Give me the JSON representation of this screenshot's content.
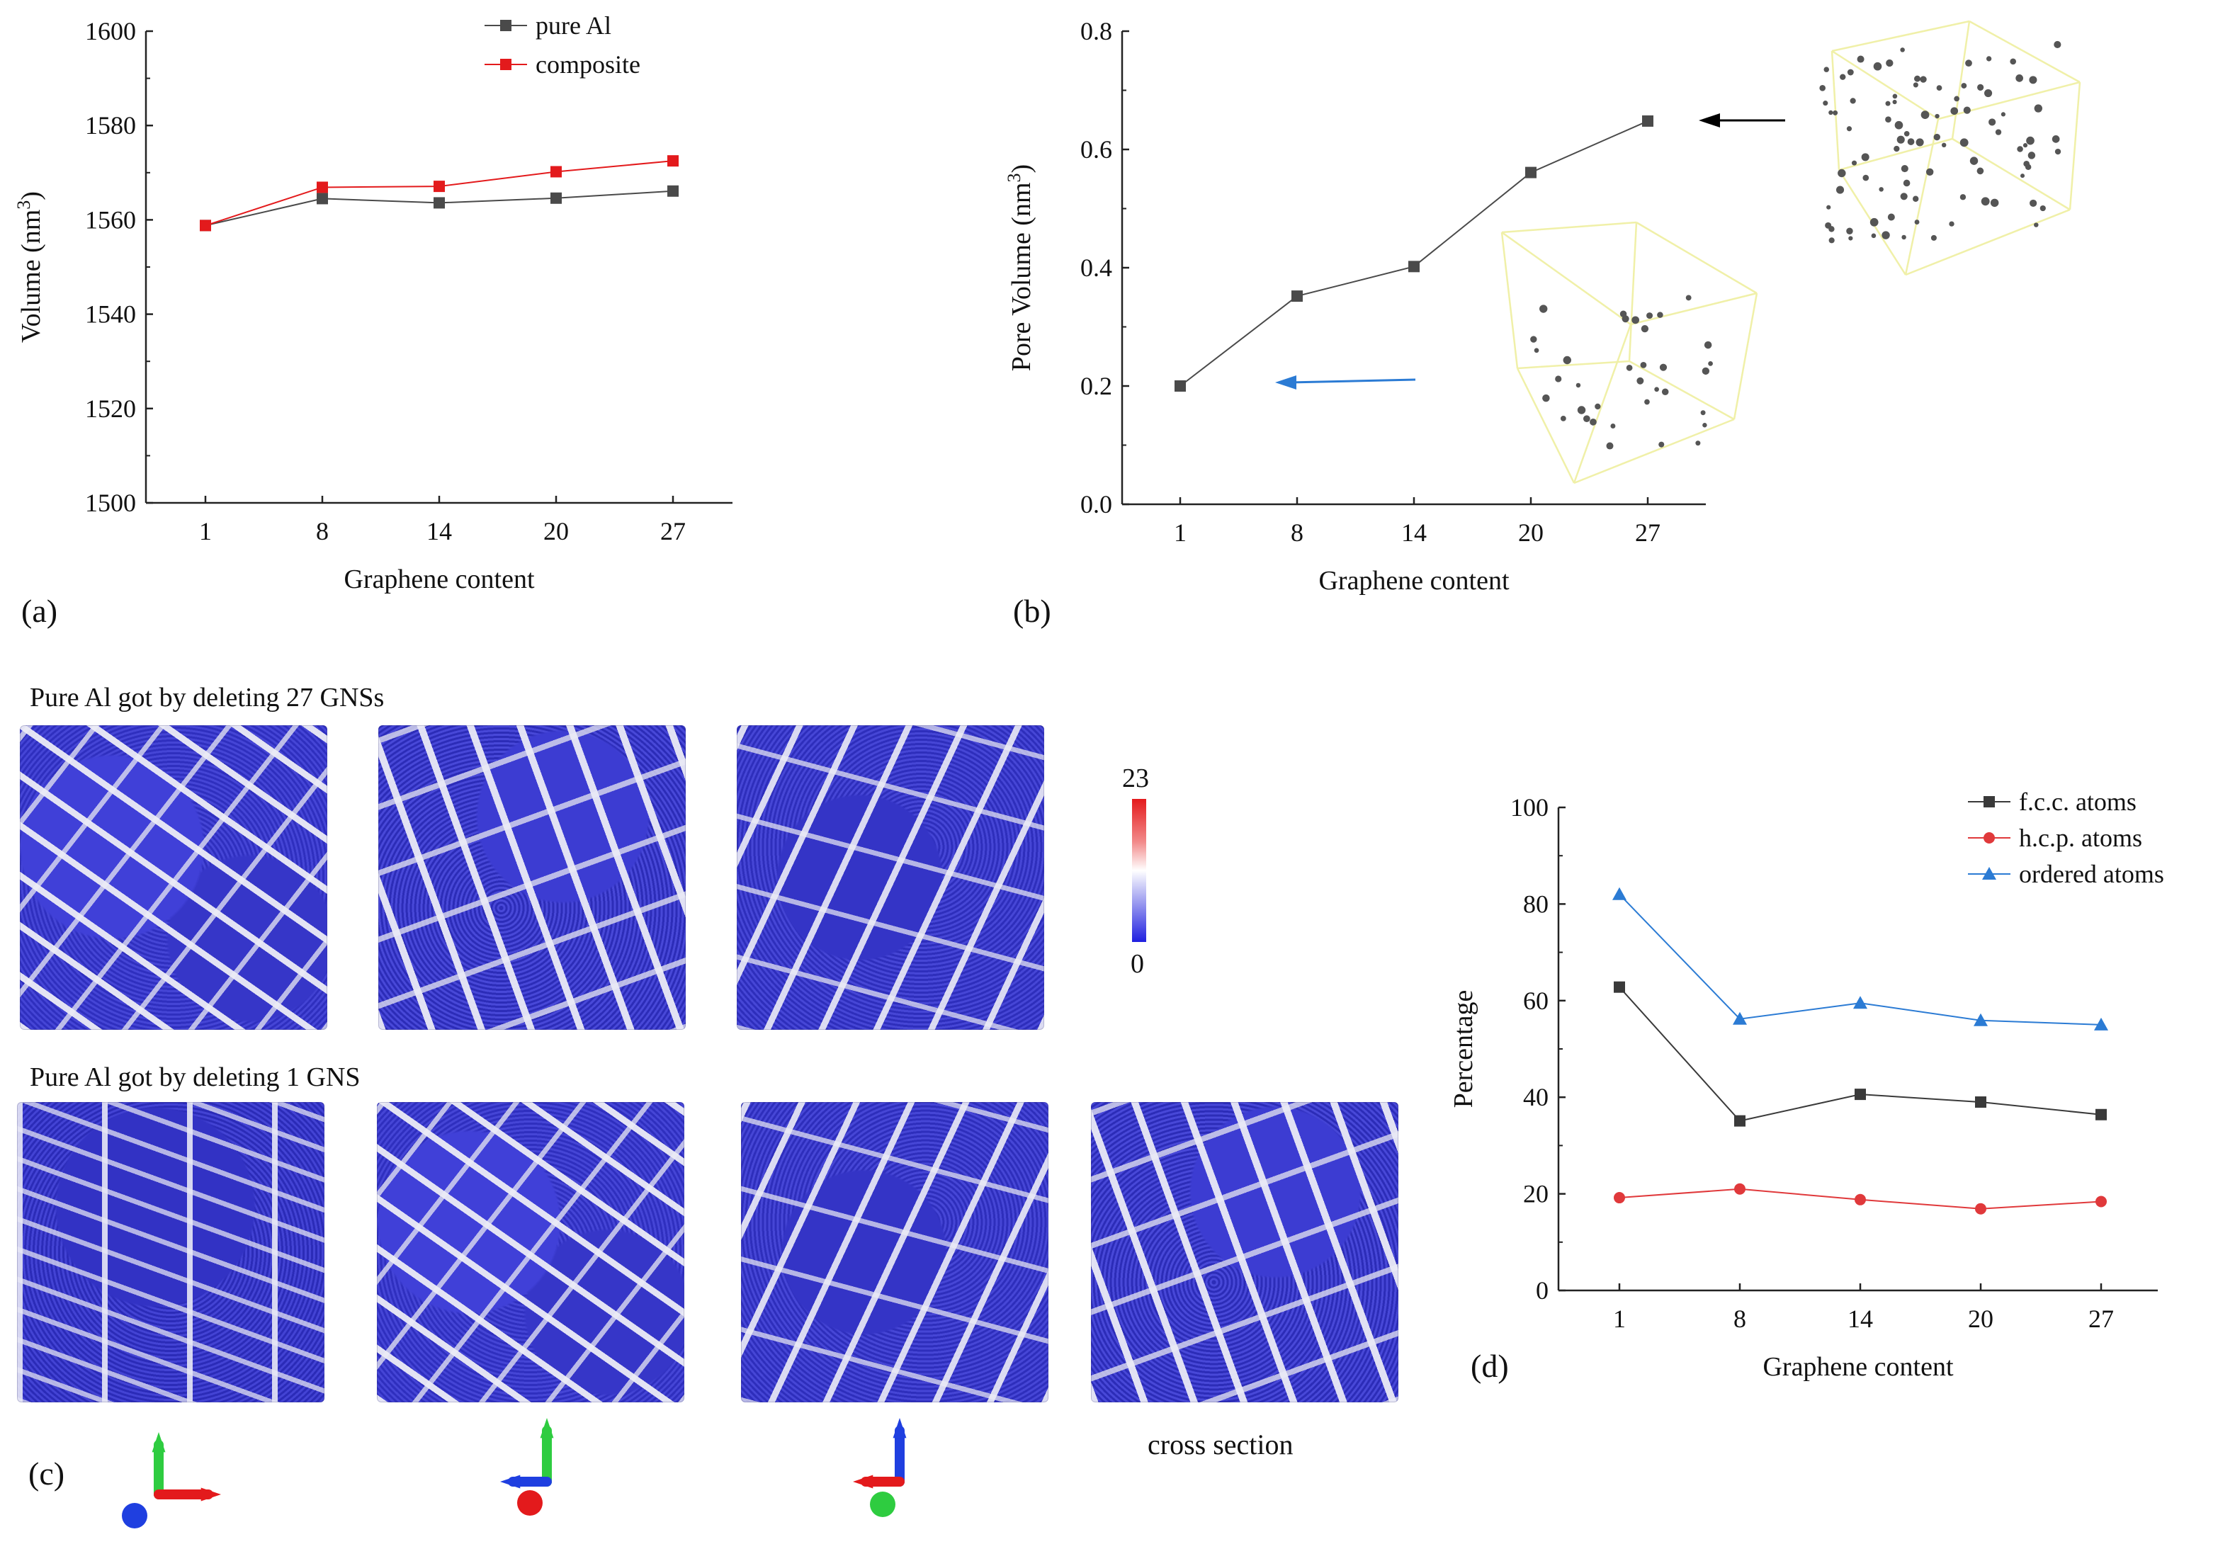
{
  "colors": {
    "pure_al": "#4a4a4a",
    "composite": "#e31a1c",
    "pore": "#4a4a4a",
    "fcc": "#3a3a3a",
    "hcp": "#e0393b",
    "ordered": "#2b7bd4",
    "axis_x": "#e31a1c",
    "axis_y": "#2ecc40",
    "axis_z": "#1f3fe0",
    "box_outline": "#f0f0a8"
  },
  "chart_data": [
    {
      "type": "line",
      "panel": "(a)",
      "xlabel": "Graphene content",
      "ylabel": "Volume (nm",
      "ylabel_sup": "3",
      "ylabel_end": ")",
      "categories": [
        "1",
        "8",
        "14",
        "20",
        "27"
      ],
      "ylim": [
        1500,
        1600
      ],
      "yticks": [
        "1500",
        "1520",
        "1540",
        "1560",
        "1580",
        "1600"
      ],
      "legend_position": "top-right",
      "series": [
        {
          "name": "pure Al",
          "marker": "square",
          "values": [
            1558.8,
            1564.5,
            1563.6,
            1564.6,
            1566.1
          ]
        },
        {
          "name": "composite",
          "marker": "square",
          "values": [
            1558.8,
            1566.9,
            1567.1,
            1570.2,
            1572.5
          ]
        }
      ]
    },
    {
      "type": "line",
      "panel": "(b)",
      "xlabel": "Graphene content",
      "ylabel": "Pore Volume (nm",
      "ylabel_sup": "3",
      "ylabel_end": ")",
      "categories": [
        "1",
        "8",
        "14",
        "20",
        "27"
      ],
      "ylim": [
        0.0,
        0.8
      ],
      "yticks": [
        "0.0",
        "0.2",
        "0.4",
        "0.6",
        "0.8"
      ],
      "series": [
        {
          "marker": "square",
          "values": [
            0.2,
            0.352,
            0.402,
            0.561,
            0.648
          ]
        }
      ]
    },
    {
      "type": "line",
      "panel": "(d)",
      "xlabel": "Graphene content",
      "ylabel": "Percentage",
      "categories": [
        "1",
        "8",
        "14",
        "20",
        "27"
      ],
      "ylim": [
        0,
        100
      ],
      "yticks": [
        "0",
        "20",
        "40",
        "60",
        "80",
        "100"
      ],
      "legend_position": "top-right",
      "series": [
        {
          "name": "f.c.c. atoms",
          "marker": "square",
          "values": [
            62.8,
            35.1,
            40.6,
            39.0,
            36.4
          ]
        },
        {
          "name": "h.c.p. atoms",
          "marker": "circle",
          "values": [
            19.2,
            21.0,
            18.8,
            16.9,
            18.4
          ]
        },
        {
          "name": "ordered atoms",
          "marker": "triangle",
          "values": [
            82.0,
            56.2,
            59.5,
            55.9,
            55.0
          ]
        }
      ]
    }
  ],
  "panel_c": {
    "label": "(c)",
    "row1_title": "Pure Al got by deleting 27 GNSs",
    "row2_title": "Pure Al got by deleting 1 GNS",
    "colorbar_max": "23",
    "colorbar_min": "0",
    "cross_section_label": "cross section"
  }
}
